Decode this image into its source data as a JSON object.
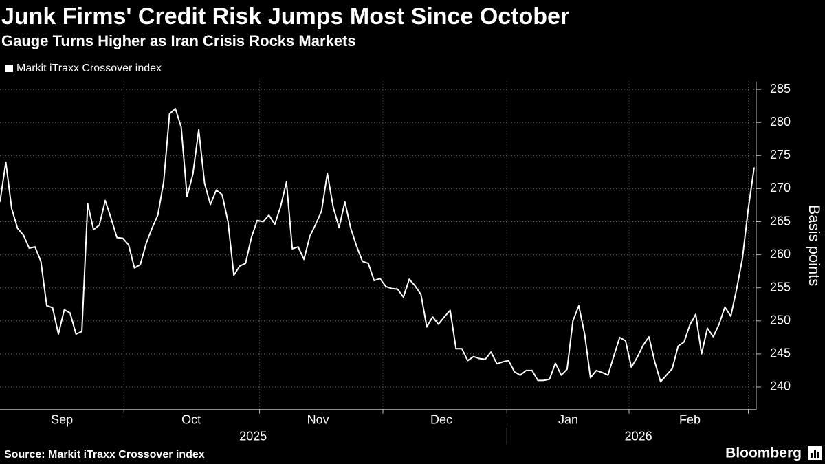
{
  "chart_data": {
    "type": "line",
    "title": "Junk Firms' Credit Risk Jumps Most Since October",
    "subtitle": "Gauge Turns Higher as Iran Crisis Rocks Markets",
    "source": "Source: Markit iTraxx Crossover index",
    "brand": "Bloomberg",
    "y_label": "Basis points",
    "series": [
      {
        "name": "Markit iTraxx Crossover index",
        "color": "#ffffff",
        "values": [
          268,
          274,
          267,
          264,
          263,
          261,
          261.2,
          259,
          252.3,
          252,
          248,
          251.7,
          251.2,
          248,
          248.4,
          267.7,
          263.8,
          264.5,
          268.2,
          265.5,
          262.6,
          262.5,
          261.5,
          258,
          258.5,
          261.7,
          264,
          266,
          271,
          281.3,
          282.1,
          279.3,
          268.8,
          272.2,
          278.9,
          270.8,
          267.6,
          269.8,
          269.1,
          265,
          256.9,
          258.3,
          258.7,
          262.6,
          265.2,
          265,
          266,
          264.6,
          267.3,
          271,
          260.9,
          261.2,
          259.3,
          262.8,
          264.6,
          266.6,
          272.3,
          267.2,
          264.1,
          268,
          264,
          261.3,
          259,
          258.7,
          256.1,
          256.4,
          255.2,
          254.9,
          254.8,
          253.6,
          256.3,
          255.3,
          254,
          249.1,
          250.6,
          249.5,
          250.6,
          251.6,
          245.8,
          245.8,
          244,
          244.6,
          244.3,
          244.2,
          245.3,
          243.5,
          243.8,
          244,
          242.3,
          241.8,
          242.5,
          242.5,
          241,
          241,
          241.2,
          243.6,
          241.8,
          242.7,
          250,
          252.3,
          248,
          241.4,
          242.5,
          242.2,
          241.8,
          244.7,
          247.5,
          247,
          243,
          244.5,
          246.3,
          247.6,
          243.8,
          240.8,
          241.8,
          242.8,
          246.2,
          246.8,
          249.4,
          251,
          245,
          248.9,
          247.6,
          249.5,
          252.1,
          250.7,
          254.8,
          259.5,
          267,
          273.2
        ]
      }
    ],
    "xlim": [
      0,
      129
    ],
    "xticks": [
      {
        "value": 10.6,
        "label": "Sep"
      },
      {
        "value": 32.7,
        "label": "Oct"
      },
      {
        "value": 54.4,
        "label": "Nov"
      },
      {
        "value": 75.5,
        "label": "Dec"
      },
      {
        "value": 97.2,
        "label": "Jan"
      },
      {
        "value": 118,
        "label": "Feb"
      }
    ],
    "x_grid": [
      21.2,
      44.4,
      65.5,
      86.7,
      107.6,
      128
    ],
    "years": [
      {
        "value": 43.3,
        "label": "2025"
      },
      {
        "value": 109.2,
        "label": "2026"
      }
    ],
    "year_divider": 86.7,
    "ylim": [
      236.6,
      286.2
    ],
    "yticks": [
      240,
      245,
      250,
      255,
      260,
      265,
      270,
      275,
      280,
      285
    ],
    "grid": true
  }
}
